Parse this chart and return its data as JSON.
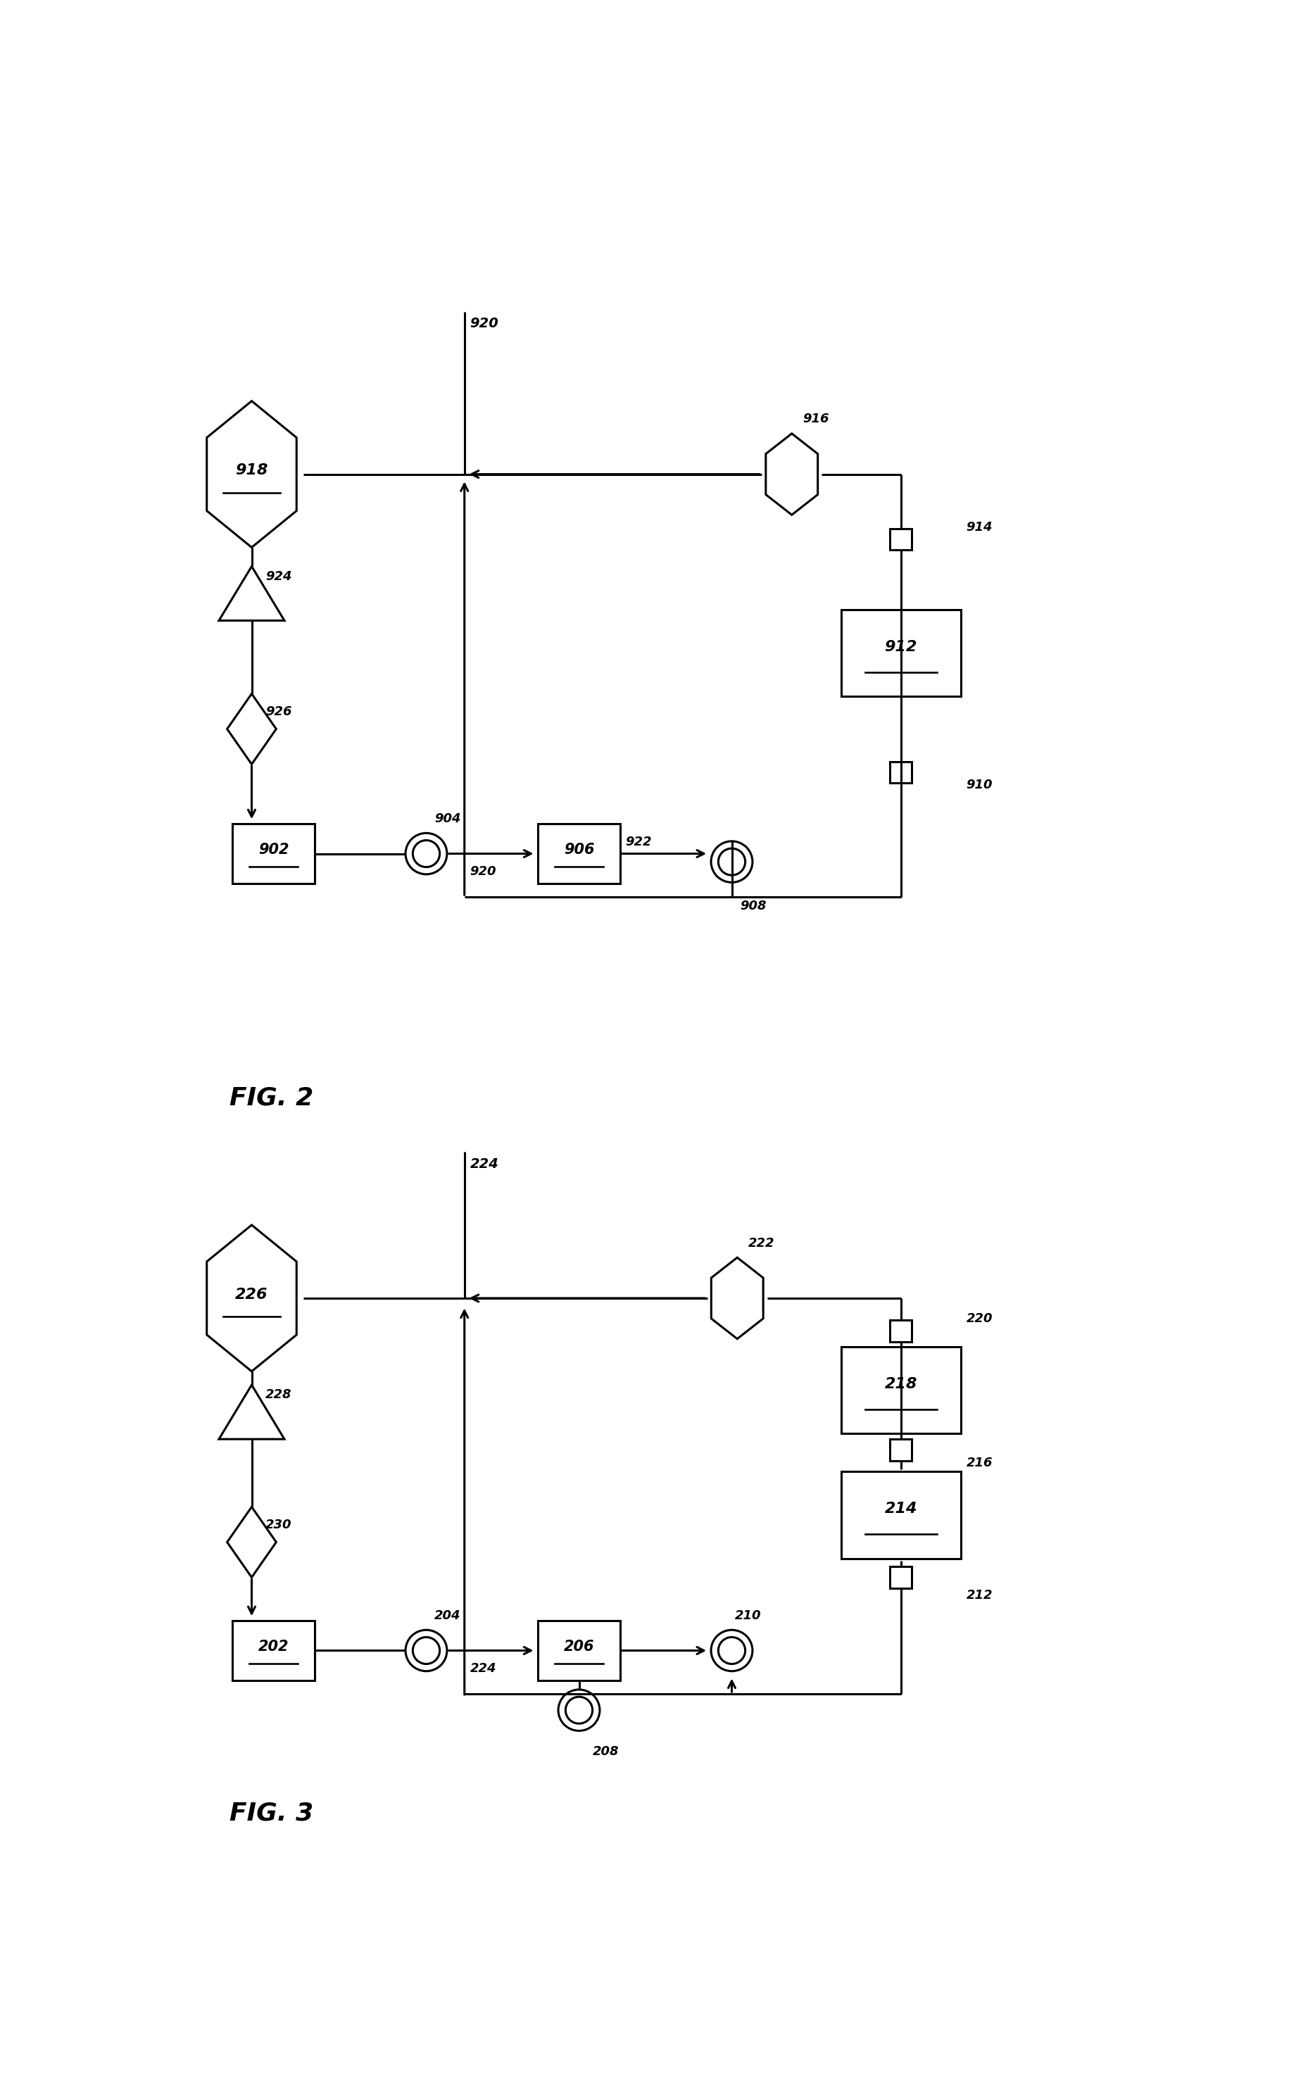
{
  "bg_color": "#ffffff",
  "lc": "#000000",
  "lw": 2.2,
  "fig_width": 18.68,
  "fig_height": 29.63,
  "fig2_title": "FIG. 2",
  "fig3_title": "FIG. 3",
  "aspect_ratio": 0.535
}
